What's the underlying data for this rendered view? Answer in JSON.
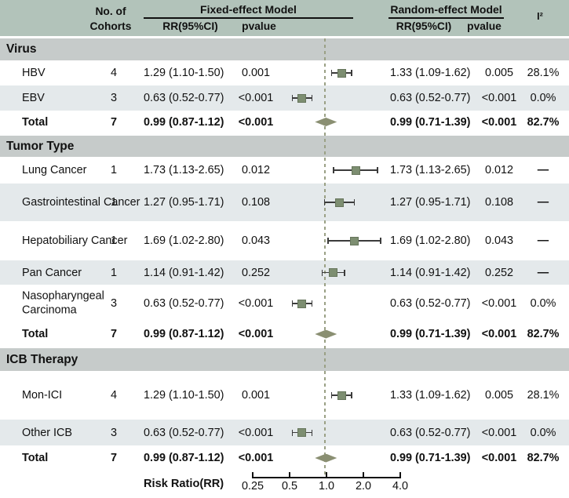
{
  "header": {
    "cohorts_label_line1": "No. of",
    "cohorts_label_line2": "Cohorts",
    "fixed_title": "Fixed-effect Model",
    "random_title": "Random-effect Model",
    "rr_col": "RR(95%CI)",
    "pvalue_col": "pvalue",
    "i2_col": "I²"
  },
  "axis": {
    "label": "Risk Ratio(RR)",
    "ticks": [
      "0.25",
      "0.5",
      "1.0",
      "2.0",
      "4.0"
    ]
  },
  "colors": {
    "header_band": "#b2c3ba",
    "section_band": "#c6cbca",
    "stripe_row": "#e4e9eb",
    "marker_square": "#7d8e71",
    "diamond": "#8a9072",
    "reference_line": "#9aa085",
    "text": "#111111"
  },
  "sections": [
    {
      "title": "Virus",
      "rows": [
        {
          "label": "HBV",
          "cohorts": "4",
          "fixed_rr": "1.29 (1.10-1.50)",
          "fixed_p": "0.001",
          "random_rr": "1.33 (1.09-1.62)",
          "random_p": "0.005",
          "i2": "28.1%"
        },
        {
          "label": "EBV",
          "cohorts": "3",
          "fixed_rr": "0.63 (0.52-0.77)",
          "fixed_p": "<0.001",
          "random_rr": "0.63 (0.52-0.77)",
          "random_p": "<0.001",
          "i2": "0.0%"
        },
        {
          "label": "Total",
          "cohorts": "7",
          "fixed_rr": "0.99 (0.87-1.12)",
          "fixed_p": "<0.001",
          "random_rr": "0.99 (0.71-1.39)",
          "random_p": "<0.001",
          "i2": "82.7%"
        }
      ]
    },
    {
      "title": "Tumor Type",
      "rows": [
        {
          "label": "Lung Cancer",
          "cohorts": "1",
          "fixed_rr": "1.73 (1.13-2.65)",
          "fixed_p": "0.012",
          "random_rr": "1.73 (1.13-2.65)",
          "random_p": "0.012",
          "i2": "—"
        },
        {
          "label": "Gastrointestinal Cancer",
          "cohorts": "1",
          "fixed_rr": "1.27 (0.95-1.71)",
          "fixed_p": "0.108",
          "random_rr": "1.27 (0.95-1.71)",
          "random_p": "0.108",
          "i2": "—"
        },
        {
          "label": "Hepatobiliary Cancer",
          "cohorts": "1",
          "fixed_rr": "1.69 (1.02-2.80)",
          "fixed_p": "0.043",
          "random_rr": "1.69 (1.02-2.80)",
          "random_p": "0.043",
          "i2": "—"
        },
        {
          "label": "Pan Cancer",
          "cohorts": "1",
          "fixed_rr": "1.14 (0.91-1.42)",
          "fixed_p": "0.252",
          "random_rr": "1.14 (0.91-1.42)",
          "random_p": "0.252",
          "i2": "—"
        },
        {
          "label": "Nasopharyngeal Carcinoma",
          "cohorts": "3",
          "fixed_rr": "0.63 (0.52-0.77)",
          "fixed_p": "<0.001",
          "random_rr": "0.63 (0.52-0.77)",
          "random_p": "<0.001",
          "i2": "0.0%"
        },
        {
          "label": "Total",
          "cohorts": "7",
          "fixed_rr": "0.99 (0.87-1.12)",
          "fixed_p": "<0.001",
          "random_rr": "0.99 (0.71-1.39)",
          "random_p": "<0.001",
          "i2": "82.7%"
        }
      ]
    },
    {
      "title": "ICB Therapy",
      "rows": [
        {
          "label": "Mon-ICI",
          "cohorts": "4",
          "fixed_rr": "1.29 (1.10-1.50)",
          "fixed_p": "0.001",
          "random_rr": "1.33 (1.09-1.62)",
          "random_p": "0.005",
          "i2": "28.1%"
        },
        {
          "label": "Other ICB",
          "cohorts": "3",
          "fixed_rr": "0.63 (0.52-0.77)",
          "fixed_p": "<0.001",
          "random_rr": "0.63 (0.52-0.77)",
          "random_p": "<0.001",
          "i2": "0.0%"
        },
        {
          "label": "Total",
          "cohorts": "7",
          "fixed_rr": "0.99 (0.87-1.12)",
          "fixed_p": "<0.001",
          "random_rr": "0.99 (0.71-1.39)",
          "random_p": "<0.001",
          "i2": "82.7%"
        }
      ]
    }
  ],
  "chart_data": {
    "type": "scatter",
    "subtype": "forest-plot",
    "xlabel": "Risk Ratio(RR)",
    "x_scale": "log2",
    "x_ticks": [
      0.25,
      0.5,
      1.0,
      2.0,
      4.0
    ],
    "xlim": [
      0.25,
      4.0
    ],
    "reference_line": 1.0,
    "groups": [
      {
        "group": "Virus",
        "rows": [
          {
            "label": "HBV",
            "cohorts": 4,
            "fixed": {
              "rr": 1.29,
              "ci": [
                1.1,
                1.5
              ],
              "p": "0.001"
            },
            "random": {
              "rr": 1.33,
              "ci": [
                1.09,
                1.62
              ],
              "p": "0.005"
            },
            "i2": "28.1%",
            "marker": "square",
            "plot": {
              "est": 1.33,
              "lo": 1.09,
              "hi": 1.62
            }
          },
          {
            "label": "EBV",
            "cohorts": 3,
            "fixed": {
              "rr": 0.63,
              "ci": [
                0.52,
                0.77
              ],
              "p": "<0.001"
            },
            "random": {
              "rr": 0.63,
              "ci": [
                0.52,
                0.77
              ],
              "p": "<0.001"
            },
            "i2": "0.0%",
            "marker": "square",
            "plot": {
              "est": 0.63,
              "lo": 0.52,
              "hi": 0.77
            }
          },
          {
            "label": "Total",
            "cohorts": 7,
            "fixed": {
              "rr": 0.99,
              "ci": [
                0.87,
                1.12
              ],
              "p": "<0.001"
            },
            "random": {
              "rr": 0.99,
              "ci": [
                0.71,
                1.39
              ],
              "p": "<0.001"
            },
            "i2": "82.7%",
            "marker": "diamond",
            "plot": {
              "est": 0.99,
              "lo": 0.87,
              "hi": 1.12
            }
          }
        ]
      },
      {
        "group": "Tumor Type",
        "rows": [
          {
            "label": "Lung Cancer",
            "cohorts": 1,
            "fixed": {
              "rr": 1.73,
              "ci": [
                1.13,
                2.65
              ],
              "p": "0.012"
            },
            "random": {
              "rr": 1.73,
              "ci": [
                1.13,
                2.65
              ],
              "p": "0.012"
            },
            "i2": null,
            "marker": "square",
            "plot": {
              "est": 1.73,
              "lo": 1.13,
              "hi": 2.65
            }
          },
          {
            "label": "Gastrointestinal Cancer",
            "cohorts": 1,
            "fixed": {
              "rr": 1.27,
              "ci": [
                0.95,
                1.71
              ],
              "p": "0.108"
            },
            "random": {
              "rr": 1.27,
              "ci": [
                0.95,
                1.71
              ],
              "p": "0.108"
            },
            "i2": null,
            "marker": "square",
            "plot": {
              "est": 1.27,
              "lo": 0.95,
              "hi": 1.71
            }
          },
          {
            "label": "Hepatobiliary Cancer",
            "cohorts": 1,
            "fixed": {
              "rr": 1.69,
              "ci": [
                1.02,
                2.8
              ],
              "p": "0.043"
            },
            "random": {
              "rr": 1.69,
              "ci": [
                1.02,
                2.8
              ],
              "p": "0.043"
            },
            "i2": null,
            "marker": "square",
            "plot": {
              "est": 1.69,
              "lo": 1.02,
              "hi": 2.8
            }
          },
          {
            "label": "Pan Cancer",
            "cohorts": 1,
            "fixed": {
              "rr": 1.14,
              "ci": [
                0.91,
                1.42
              ],
              "p": "0.252"
            },
            "random": {
              "rr": 1.14,
              "ci": [
                0.91,
                1.42
              ],
              "p": "0.252"
            },
            "i2": null,
            "marker": "square",
            "plot": {
              "est": 1.14,
              "lo": 0.91,
              "hi": 1.42
            }
          },
          {
            "label": "Nasopharyngeal Carcinoma",
            "cohorts": 3,
            "fixed": {
              "rr": 0.63,
              "ci": [
                0.52,
                0.77
              ],
              "p": "<0.001"
            },
            "random": {
              "rr": 0.63,
              "ci": [
                0.52,
                0.77
              ],
              "p": "<0.001"
            },
            "i2": "0.0%",
            "marker": "square",
            "plot": {
              "est": 0.63,
              "lo": 0.52,
              "hi": 0.77
            }
          },
          {
            "label": "Total",
            "cohorts": 7,
            "fixed": {
              "rr": 0.99,
              "ci": [
                0.87,
                1.12
              ],
              "p": "<0.001"
            },
            "random": {
              "rr": 0.99,
              "ci": [
                0.71,
                1.39
              ],
              "p": "<0.001"
            },
            "i2": "82.7%",
            "marker": "diamond",
            "plot": {
              "est": 0.99,
              "lo": 0.87,
              "hi": 1.12
            }
          }
        ]
      },
      {
        "group": "ICB Therapy",
        "rows": [
          {
            "label": "Mon-ICI",
            "cohorts": 4,
            "fixed": {
              "rr": 1.29,
              "ci": [
                1.1,
                1.5
              ],
              "p": "0.001"
            },
            "random": {
              "rr": 1.33,
              "ci": [
                1.09,
                1.62
              ],
              "p": "0.005"
            },
            "i2": "28.1%",
            "marker": "square",
            "plot": {
              "est": 1.33,
              "lo": 1.09,
              "hi": 1.62
            }
          },
          {
            "label": "Other ICB",
            "cohorts": 3,
            "fixed": {
              "rr": 0.63,
              "ci": [
                0.52,
                0.77
              ],
              "p": "<0.001"
            },
            "random": {
              "rr": 0.63,
              "ci": [
                0.52,
                0.77
              ],
              "p": "<0.001"
            },
            "i2": "0.0%",
            "marker": "square",
            "plot": {
              "est": 0.63,
              "lo": 0.52,
              "hi": 0.77
            }
          },
          {
            "label": "Total",
            "cohorts": 7,
            "fixed": {
              "rr": 0.99,
              "ci": [
                0.87,
                1.12
              ],
              "p": "<0.001"
            },
            "random": {
              "rr": 0.99,
              "ci": [
                0.71,
                1.39
              ],
              "p": "<0.001"
            },
            "i2": "82.7%",
            "marker": "diamond",
            "plot": {
              "est": 0.99,
              "lo": 0.87,
              "hi": 1.12
            }
          }
        ]
      }
    ]
  }
}
